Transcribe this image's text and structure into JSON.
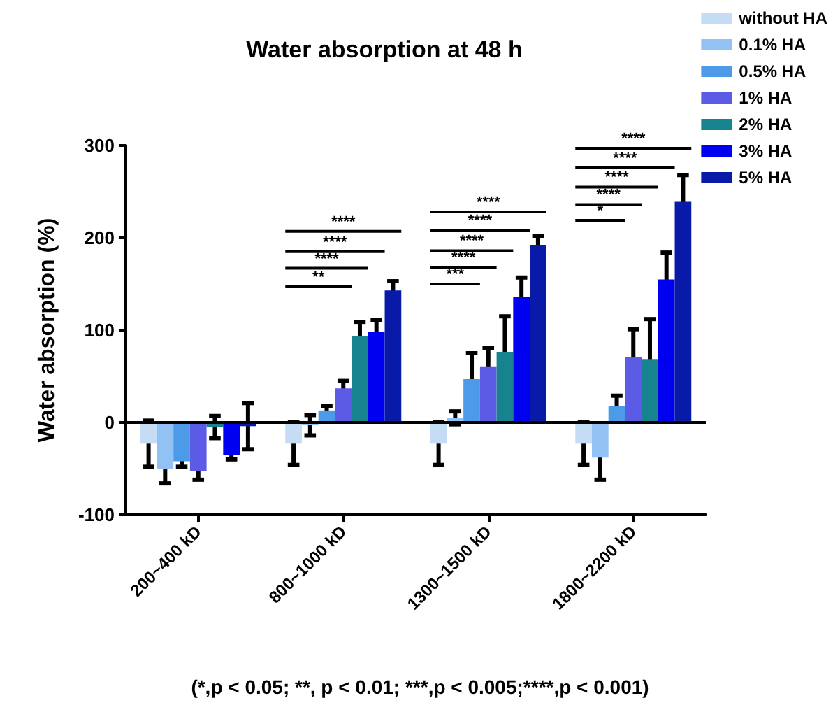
{
  "chart_data": {
    "type": "bar",
    "title": "Water absorption at 48 h",
    "ylabel": "Water absorption (%)",
    "categories": [
      "200~400 kD",
      "800~1000 kD",
      "1300~1500 kD",
      "1800~2200 kD"
    ],
    "series": [
      {
        "name": "without HA",
        "color": "#c5dcf5",
        "values": [
          -23,
          -23,
          -23,
          -23
        ],
        "errors": [
          25,
          23,
          23,
          23
        ]
      },
      {
        "name": "0.1% HA",
        "color": "#92c1f3",
        "values": [
          -50,
          -3,
          5,
          -38
        ],
        "errors": [
          16,
          11,
          7,
          24
        ]
      },
      {
        "name": "0.5% HA",
        "color": "#4d9be8",
        "values": [
          -42,
          13,
          47,
          18
        ],
        "errors": [
          6,
          5,
          28,
          11
        ]
      },
      {
        "name": "1% HA",
        "color": "#5b5be6",
        "values": [
          -53,
          37,
          60,
          71
        ],
        "errors": [
          9,
          8,
          21,
          30
        ]
      },
      {
        "name": "2% HA",
        "color": "#16838f",
        "values": [
          -5,
          94,
          76,
          68
        ],
        "errors": [
          12,
          15,
          39,
          44
        ]
      },
      {
        "name": "3% HA",
        "color": "#0000f0",
        "values": [
          -35,
          98,
          136,
          155
        ],
        "errors": [
          5,
          13,
          21,
          29
        ]
      },
      {
        "name": "5% HA",
        "color": "#0a1aa8",
        "values": [
          -4,
          143,
          192,
          239
        ],
        "errors": [
          25,
          10,
          10,
          29
        ]
      }
    ],
    "ylim": [
      -100,
      300
    ],
    "yticks": [
      -100,
      0,
      100,
      200,
      300
    ],
    "grid": false,
    "legend": "top right",
    "ref_lines": [
      {
        "axis": "y",
        "value": 0,
        "color": "#000000",
        "line_style": "solid"
      }
    ],
    "annotations": [
      "**",
      "****",
      "****",
      "****",
      "***",
      "****",
      "****",
      "****",
      "****",
      "*",
      "****",
      "****",
      "****",
      "****",
      "(*,p < 0.05; **, p < 0.01; ***,p < 0.005;****,p < 0.001)"
    ]
  }
}
